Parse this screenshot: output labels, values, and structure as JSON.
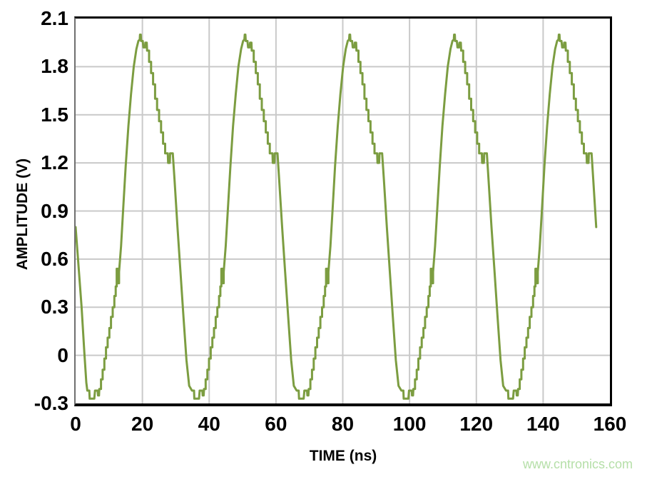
{
  "axes": {
    "x_title": "TIME (ns)",
    "y_title": "AMPLITUDE (V)"
  },
  "watermark": {
    "text": "www.cntronics.com",
    "color": "#b5dfa8"
  },
  "chart_data": {
    "type": "line",
    "title": "",
    "xlabel": "TIME (ns)",
    "ylabel": "AMPLITUDE (V)",
    "xlim": [
      0,
      160
    ],
    "ylim": [
      -0.3,
      2.1
    ],
    "x_ticks": [
      0,
      20,
      40,
      60,
      80,
      100,
      120,
      140,
      160
    ],
    "x_tick_labels": [
      "0",
      "20",
      "40",
      "60",
      "80",
      "100",
      "120",
      "140",
      "160"
    ],
    "y_ticks": [
      2.1,
      1.8,
      1.5,
      1.2,
      0.9,
      0.6,
      0.3,
      0,
      -0.3
    ],
    "y_tick_labels": [
      "2.1",
      "1.8",
      "1.5",
      "1.2",
      "0.9",
      "0.6",
      "0.3",
      "0",
      "-0.3"
    ],
    "grid": true,
    "grid_x": [
      20,
      40,
      60,
      80,
      100,
      120,
      140
    ],
    "grid_y": [
      0,
      0.3,
      0.6,
      0.9,
      1.2,
      1.5,
      1.8
    ],
    "grid_color": "#c9c9c9",
    "line_color": "#7C9D41",
    "series_name": "amplitude",
    "waveform": {
      "description": "Quantized DAC sine output, 5 cycles; stepped rising edge with glitch near 0.5 V, stepped falling edge with plateau/notch near 1.2 V; peaks ~2.0 V, flat troughs ~-0.27 V; trace starts at 0.8 V falling and ends ~0.9 V falling at right edge",
      "period_ns": 31.35,
      "num_cycles": 5,
      "t_end_ns": 155.95,
      "initial_points": [
        [
          0,
          0.8
        ],
        [
          0.9,
          0.55
        ],
        [
          1.8,
          0.3
        ],
        [
          2.6,
          0.02
        ],
        [
          3.2,
          -0.17
        ]
      ],
      "cycle_template": [
        [
          3.5,
          -0.22
        ],
        [
          4.1,
          -0.22
        ],
        [
          4.2,
          -0.27
        ],
        [
          5.6,
          -0.27
        ],
        [
          5.8,
          -0.22
        ],
        [
          6.6,
          -0.22
        ],
        [
          6.7,
          -0.25
        ],
        [
          7.0,
          -0.25
        ],
        [
          7.1,
          -0.21
        ],
        [
          7.6,
          -0.21
        ],
        [
          7.6,
          -0.15
        ],
        [
          8.1,
          -0.15
        ],
        [
          8.1,
          -0.09
        ],
        [
          8.6,
          -0.09
        ],
        [
          8.6,
          -0.02
        ],
        [
          9.1,
          -0.02
        ],
        [
          9.1,
          0.05
        ],
        [
          9.6,
          0.05
        ],
        [
          9.6,
          0.11
        ],
        [
          10.1,
          0.11
        ],
        [
          10.1,
          0.17
        ],
        [
          10.6,
          0.17
        ],
        [
          10.6,
          0.24
        ],
        [
          11.1,
          0.24
        ],
        [
          11.1,
          0.3
        ],
        [
          11.6,
          0.3
        ],
        [
          11.6,
          0.37
        ],
        [
          12.0,
          0.37
        ],
        [
          12.0,
          0.43
        ],
        [
          12.3,
          0.43
        ],
        [
          12.3,
          0.54
        ],
        [
          12.7,
          0.54
        ],
        [
          12.7,
          0.45
        ],
        [
          13.0,
          0.45
        ],
        [
          13.0,
          0.52
        ],
        [
          13.6,
          0.68
        ],
        [
          14.3,
          0.93
        ],
        [
          15.0,
          1.18
        ],
        [
          15.8,
          1.43
        ],
        [
          16.6,
          1.63
        ],
        [
          17.4,
          1.8
        ],
        [
          18.2,
          1.91
        ],
        [
          18.8,
          1.96
        ],
        [
          19.2,
          1.97
        ],
        [
          19.3,
          2.0
        ],
        [
          19.5,
          2.0
        ],
        [
          19.6,
          1.96
        ],
        [
          20.1,
          1.96
        ],
        [
          20.3,
          1.92
        ],
        [
          20.8,
          1.92
        ],
        [
          20.9,
          1.95
        ],
        [
          21.3,
          1.95
        ],
        [
          21.4,
          1.9
        ],
        [
          22.0,
          1.9
        ],
        [
          22.0,
          1.83
        ],
        [
          22.6,
          1.83
        ],
        [
          22.6,
          1.76
        ],
        [
          23.2,
          1.76
        ],
        [
          23.2,
          1.69
        ],
        [
          23.8,
          1.69
        ],
        [
          23.8,
          1.6
        ],
        [
          24.4,
          1.6
        ],
        [
          24.4,
          1.53
        ],
        [
          25.0,
          1.53
        ],
        [
          25.0,
          1.46
        ],
        [
          25.6,
          1.46
        ],
        [
          25.6,
          1.39
        ],
        [
          26.2,
          1.39
        ],
        [
          26.2,
          1.32
        ],
        [
          26.8,
          1.32
        ],
        [
          26.8,
          1.26
        ],
        [
          27.6,
          1.26
        ],
        [
          27.7,
          1.2
        ],
        [
          28.2,
          1.2
        ],
        [
          28.3,
          1.26
        ],
        [
          29.1,
          1.26
        ],
        [
          29.6,
          1.1
        ],
        [
          30.5,
          0.8
        ],
        [
          31.4,
          0.52
        ],
        [
          32.3,
          0.24
        ],
        [
          33.2,
          -0.03
        ],
        [
          34.0,
          -0.19
        ]
      ]
    }
  }
}
